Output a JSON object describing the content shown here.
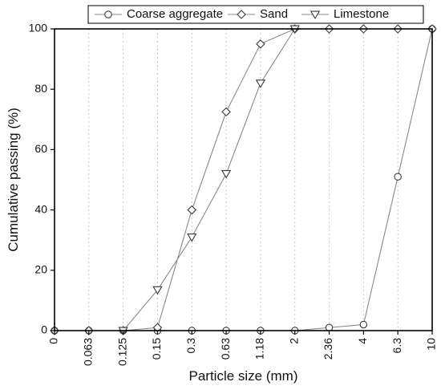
{
  "chart_data": {
    "type": "line",
    "title": "",
    "xlabel": "Particle size (mm)",
    "ylabel": "Cumulative passing (%)",
    "x_scale": "categorical",
    "categories": [
      "0",
      "0.063",
      "0.125",
      "0.15",
      "0.3",
      "0.63",
      "1.18",
      "2",
      "2.36",
      "4",
      "6.3",
      "10"
    ],
    "ylim": [
      0,
      100
    ],
    "yticks": [
      0,
      20,
      40,
      60,
      80,
      100
    ],
    "grid": "vertical dashed at each x category",
    "legend": {
      "placement": "top",
      "entries": [
        "Coarse aggregate",
        "Sand",
        "Limestone"
      ]
    },
    "series": [
      {
        "name": "Coarse aggregate",
        "marker": "circle",
        "x": [
          "0",
          "0.063",
          "0.125",
          "0.15",
          "0.3",
          "0.63",
          "1.18",
          "2",
          "2.36",
          "4",
          "6.3",
          "10"
        ],
        "values": [
          0,
          0,
          0,
          0,
          0,
          0,
          0,
          0,
          1,
          2,
          51,
          100
        ]
      },
      {
        "name": "Sand",
        "marker": "diamond",
        "x": [
          "0",
          "0.063",
          "0.125",
          "0.15",
          "0.3",
          "0.63",
          "1.18",
          "2",
          "2.36",
          "4",
          "6.3",
          "10"
        ],
        "values": [
          0,
          0,
          0,
          1,
          40,
          72.5,
          95,
          100,
          100,
          100,
          100,
          100
        ]
      },
      {
        "name": "Limestone",
        "marker": "triangle-down",
        "x": [
          "0.125",
          "0.15",
          "0.3",
          "0.63",
          "1.18",
          "2"
        ],
        "values": [
          0,
          13.5,
          31,
          52,
          82,
          100
        ]
      }
    ],
    "colors": {
      "line": "#8a8a8a",
      "marker_stroke": "#3a3a3a",
      "axis": "#000000",
      "grid": "#c8c8c8"
    }
  }
}
